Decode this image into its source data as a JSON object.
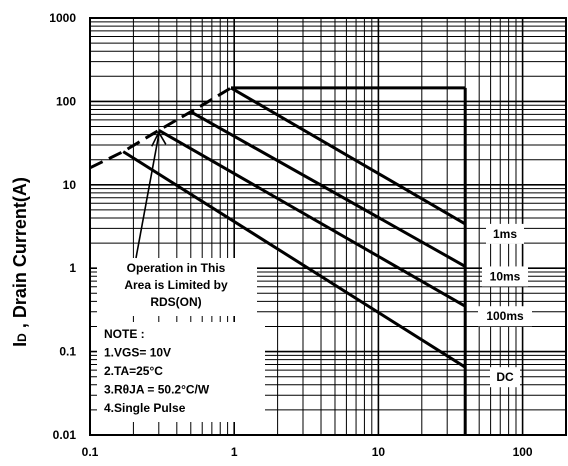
{
  "chart_data": {
    "type": "line",
    "scale": {
      "x": "log",
      "y": "log"
    },
    "xlim": [
      0.1,
      200
    ],
    "ylim": [
      0.01,
      1000
    ],
    "x_ticks": [
      "0.1",
      "1",
      "10",
      "100"
    ],
    "y_ticks": [
      "0.01",
      "0.1",
      "1",
      "10",
      "100",
      "1000"
    ],
    "ylabel_sub": "D",
    "ylabel_main": "I",
    "ylabel_rest": " , Drain Current(A)",
    "grid": true,
    "boundaries": {
      "rds_limit": [
        [
          0.1,
          16
        ],
        [
          0.17,
          25
        ],
        [
          0.3,
          45
        ],
        [
          0.5,
          75
        ],
        [
          0.6,
          90
        ],
        [
          0.95,
          145
        ]
      ],
      "current_limit": [
        [
          0.95,
          145
        ],
        [
          40,
          145
        ]
      ],
      "voltage_limit": [
        [
          40,
          145
        ],
        [
          40,
          0.01
        ]
      ]
    },
    "series": [
      {
        "label": "1ms",
        "points": [
          [
            0.95,
            145
          ],
          [
            40,
            3.4
          ]
        ]
      },
      {
        "label": "10ms",
        "points": [
          [
            0.5,
            75
          ],
          [
            40,
            1.05
          ]
        ]
      },
      {
        "label": "100ms",
        "points": [
          [
            0.3,
            45
          ],
          [
            40,
            0.35
          ]
        ]
      },
      {
        "label": "DC",
        "points": [
          [
            0.17,
            25
          ],
          [
            40,
            0.065
          ]
        ]
      }
    ],
    "annotation": {
      "lines": [
        "Operation in This",
        "Area is Limited by",
        "RDS(ON)"
      ],
      "arrow_to": [
        0.3,
        45
      ]
    },
    "note": {
      "lines": [
        "NOTE :",
        "1.VGS= 10V",
        "2.TA=25°C",
        "3.RθJA = 50.2°C/W",
        "4.Single Pulse"
      ]
    }
  }
}
